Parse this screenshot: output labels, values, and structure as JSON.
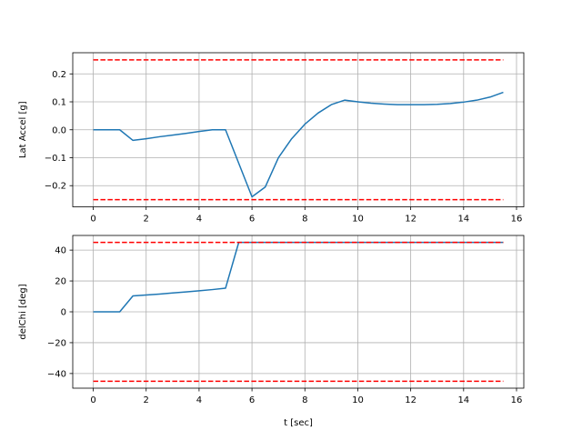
{
  "chart_data": [
    {
      "type": "line",
      "title": "",
      "xlabel": "",
      "ylabel": "Lat Accel [g]",
      "xlim": [
        -0.775,
        16.275
      ],
      "ylim": [
        -0.2757,
        0.2757
      ],
      "grid": true,
      "xticks": [
        0,
        2,
        4,
        6,
        8,
        10,
        12,
        14,
        16
      ],
      "xtick_labels": [
        "0",
        "2",
        "4",
        "6",
        "8",
        "10",
        "12",
        "14",
        "16"
      ],
      "yticks": [
        -0.2,
        -0.1,
        0.0,
        0.1,
        0.2
      ],
      "ytick_labels": [
        "−0.2",
        "−0.1",
        "0.0",
        "0.1",
        "0.2"
      ],
      "series": [
        {
          "color": "#1f77b4",
          "style": "solid",
          "x": [
            0,
            0.5,
            1.0,
            1.5,
            2.0,
            2.5,
            3.0,
            3.5,
            4.0,
            4.5,
            5.0,
            5.5,
            6.0,
            6.5,
            7.0,
            7.5,
            8.0,
            8.5,
            9.0,
            9.5,
            10.0,
            10.5,
            11.0,
            11.5,
            12.0,
            12.5,
            13.0,
            13.5,
            14.0,
            14.5,
            15.0,
            15.5
          ],
          "y": [
            0,
            0,
            0,
            -0.038,
            -0.032,
            -0.025,
            -0.019,
            -0.013,
            -0.006,
            0,
            0,
            -0.12,
            -0.24,
            -0.205,
            -0.1,
            -0.032,
            0.02,
            0.06,
            0.09,
            0.106,
            0.1,
            0.095,
            0.092,
            0.09,
            0.09,
            0.09,
            0.091,
            0.094,
            0.099,
            0.106,
            0.117,
            0.134
          ]
        },
        {
          "color": "#ff0000",
          "style": "dashed",
          "x": [
            0,
            15.5
          ],
          "y": [
            0.25,
            0.25
          ]
        },
        {
          "color": "#ff0000",
          "style": "dashed",
          "x": [
            0,
            15.5
          ],
          "y": [
            -0.25,
            -0.25
          ]
        }
      ]
    },
    {
      "type": "line",
      "title": "",
      "xlabel": "t [sec]",
      "ylabel": "delChi [deg]",
      "xlim": [
        -0.775,
        16.275
      ],
      "ylim": [
        -49.5,
        49.5
      ],
      "grid": true,
      "xticks": [
        0,
        2,
        4,
        6,
        8,
        10,
        12,
        14,
        16
      ],
      "xtick_labels": [
        "0",
        "2",
        "4",
        "6",
        "8",
        "10",
        "12",
        "14",
        "16"
      ],
      "yticks": [
        -40,
        -20,
        0,
        20,
        40
      ],
      "ytick_labels": [
        "−40",
        "−20",
        "0",
        "20",
        "40"
      ],
      "series": [
        {
          "color": "#1f77b4",
          "style": "solid",
          "x": [
            0,
            0.5,
            1.0,
            1.5,
            2.0,
            2.5,
            3.0,
            3.5,
            4.0,
            4.5,
            5.0,
            5.5,
            6.0,
            7.0,
            8.0,
            9.0,
            10.0,
            11.0,
            12.0,
            13.0,
            14.0,
            15.0,
            15.5
          ],
          "y": [
            0,
            0,
            0,
            10.3,
            10.9,
            11.5,
            12.2,
            12.9,
            13.6,
            14.4,
            15.3,
            45,
            45,
            45,
            45,
            45,
            45,
            45,
            45,
            45,
            45,
            45,
            45
          ]
        },
        {
          "color": "#ff0000",
          "style": "dashed",
          "x": [
            0,
            15.5
          ],
          "y": [
            45,
            45
          ]
        },
        {
          "color": "#ff0000",
          "style": "dashed",
          "x": [
            0,
            15.5
          ],
          "y": [
            -45,
            -45
          ]
        }
      ]
    }
  ]
}
